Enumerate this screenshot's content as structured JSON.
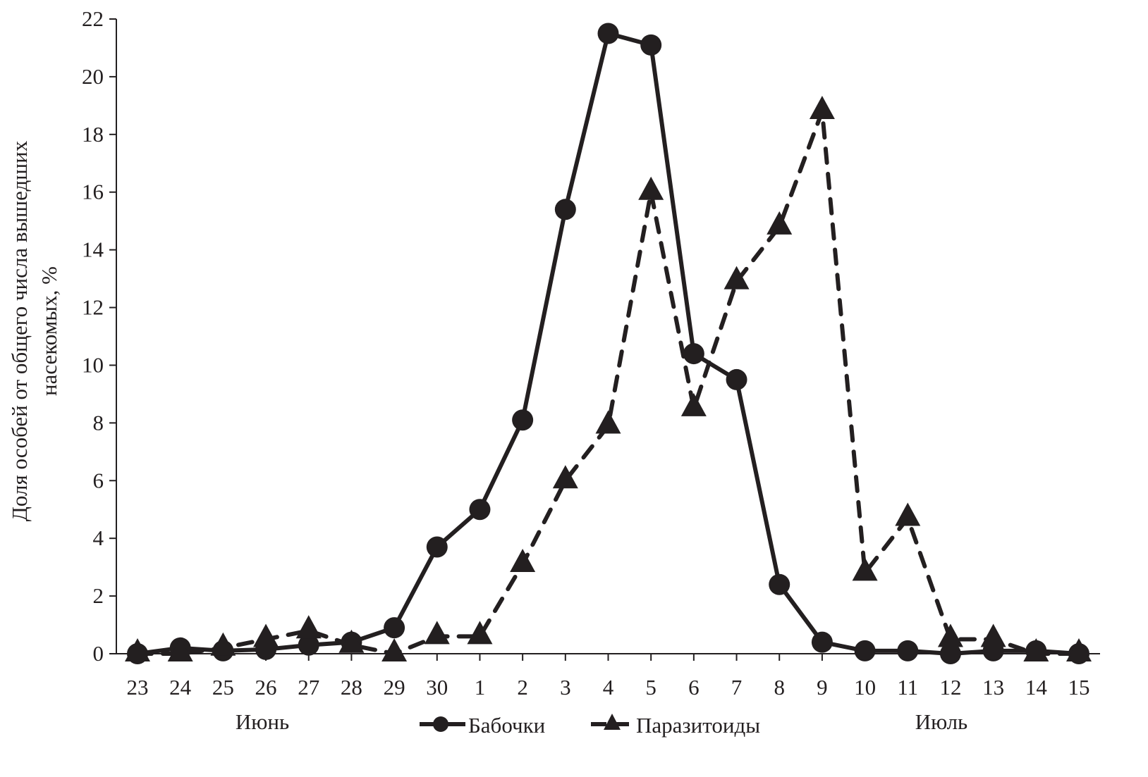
{
  "chart_data": {
    "type": "line",
    "title": "",
    "xlabel": "",
    "ylabel": "Доля особей от общего числа вышедших",
    "ylabel_line2": "насекомых, %",
    "categories": [
      "23",
      "24",
      "25",
      "26",
      "27",
      "28",
      "29",
      "30",
      "1",
      "2",
      "3",
      "4",
      "5",
      "6",
      "7",
      "8",
      "9",
      "10",
      "11",
      "12",
      "13",
      "14",
      "15"
    ],
    "month_labels": [
      "Июнь",
      "Июль"
    ],
    "ylim": [
      0,
      22
    ],
    "yticks": [
      0,
      2,
      4,
      6,
      8,
      10,
      12,
      14,
      16,
      18,
      20,
      22
    ],
    "grid": false,
    "legend_position": "bottom-center",
    "series": [
      {
        "name": "Бабочки",
        "marker": "circle",
        "line": "solid",
        "values": [
          0,
          0.2,
          0.1,
          0.15,
          0.3,
          0.4,
          0.9,
          3.7,
          5.0,
          8.1,
          15.4,
          21.5,
          21.1,
          10.4,
          9.5,
          2.4,
          0.4,
          0.1,
          0.1,
          0,
          0.1,
          0.1,
          0
        ]
      },
      {
        "name": "Паразитоиды",
        "marker": "triangle",
        "line": "dashed",
        "values": [
          0,
          0,
          0.2,
          0.5,
          0.8,
          0.3,
          0,
          0.6,
          0.6,
          3.1,
          6.0,
          7.9,
          16.0,
          8.5,
          12.9,
          14.8,
          18.8,
          2.8,
          4.7,
          0.5,
          0.5,
          0,
          0
        ]
      }
    ],
    "colors": {
      "ink": "#231f20"
    }
  }
}
